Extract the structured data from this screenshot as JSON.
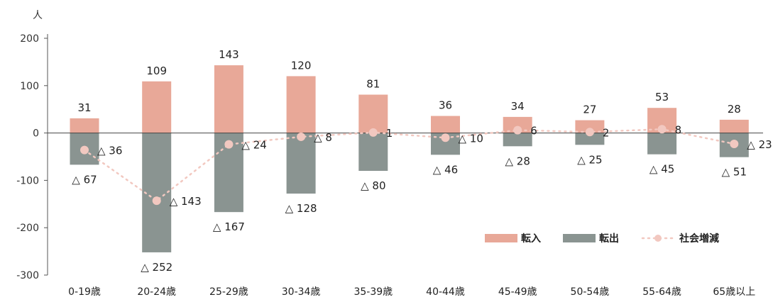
{
  "chart_data": {
    "type": "bar",
    "ylabel": "人",
    "ylim": [
      -300,
      200
    ],
    "yticks": [
      "200",
      "100",
      "0",
      "-100",
      "-200",
      "-300"
    ],
    "ytick_values": [
      200,
      100,
      0,
      -100,
      -200,
      -300
    ],
    "categories": [
      "0-19歳",
      "20-24歳",
      "25-29歳",
      "30-34歳",
      "35-39歳",
      "40-44歳",
      "45-49歳",
      "50-54歳",
      "55-64歳",
      "65歳以上"
    ],
    "series": [
      {
        "name": "転入",
        "type": "bar",
        "color": "#e8a898",
        "values": [
          31,
          109,
          143,
          120,
          81,
          36,
          34,
          27,
          53,
          28
        ],
        "labels": [
          "31",
          "109",
          "143",
          "120",
          "81",
          "36",
          "34",
          "27",
          "53",
          "28"
        ]
      },
      {
        "name": "転出",
        "type": "bar",
        "color": "#8a9491",
        "values": [
          -67,
          -252,
          -167,
          -128,
          -80,
          -46,
          -28,
          -25,
          -45,
          -51
        ],
        "labels": [
          "△ 67",
          "△ 252",
          "△ 167",
          "△ 128",
          "△ 80",
          "△ 46",
          "△ 28",
          "△ 25",
          "△ 45",
          "△ 51"
        ]
      },
      {
        "name": "社会増減",
        "type": "line",
        "color": "#f2c8c0",
        "values": [
          -36,
          -143,
          -24,
          -8,
          1,
          -10,
          6,
          2,
          8,
          -23
        ],
        "labels": [
          "△ 36",
          "△ 143",
          "△ 24",
          "△ 8",
          "1",
          "△ 10",
          "6",
          "2",
          "8",
          "△ 23"
        ]
      }
    ],
    "legend_position": "bottom-right",
    "grid": false
  }
}
